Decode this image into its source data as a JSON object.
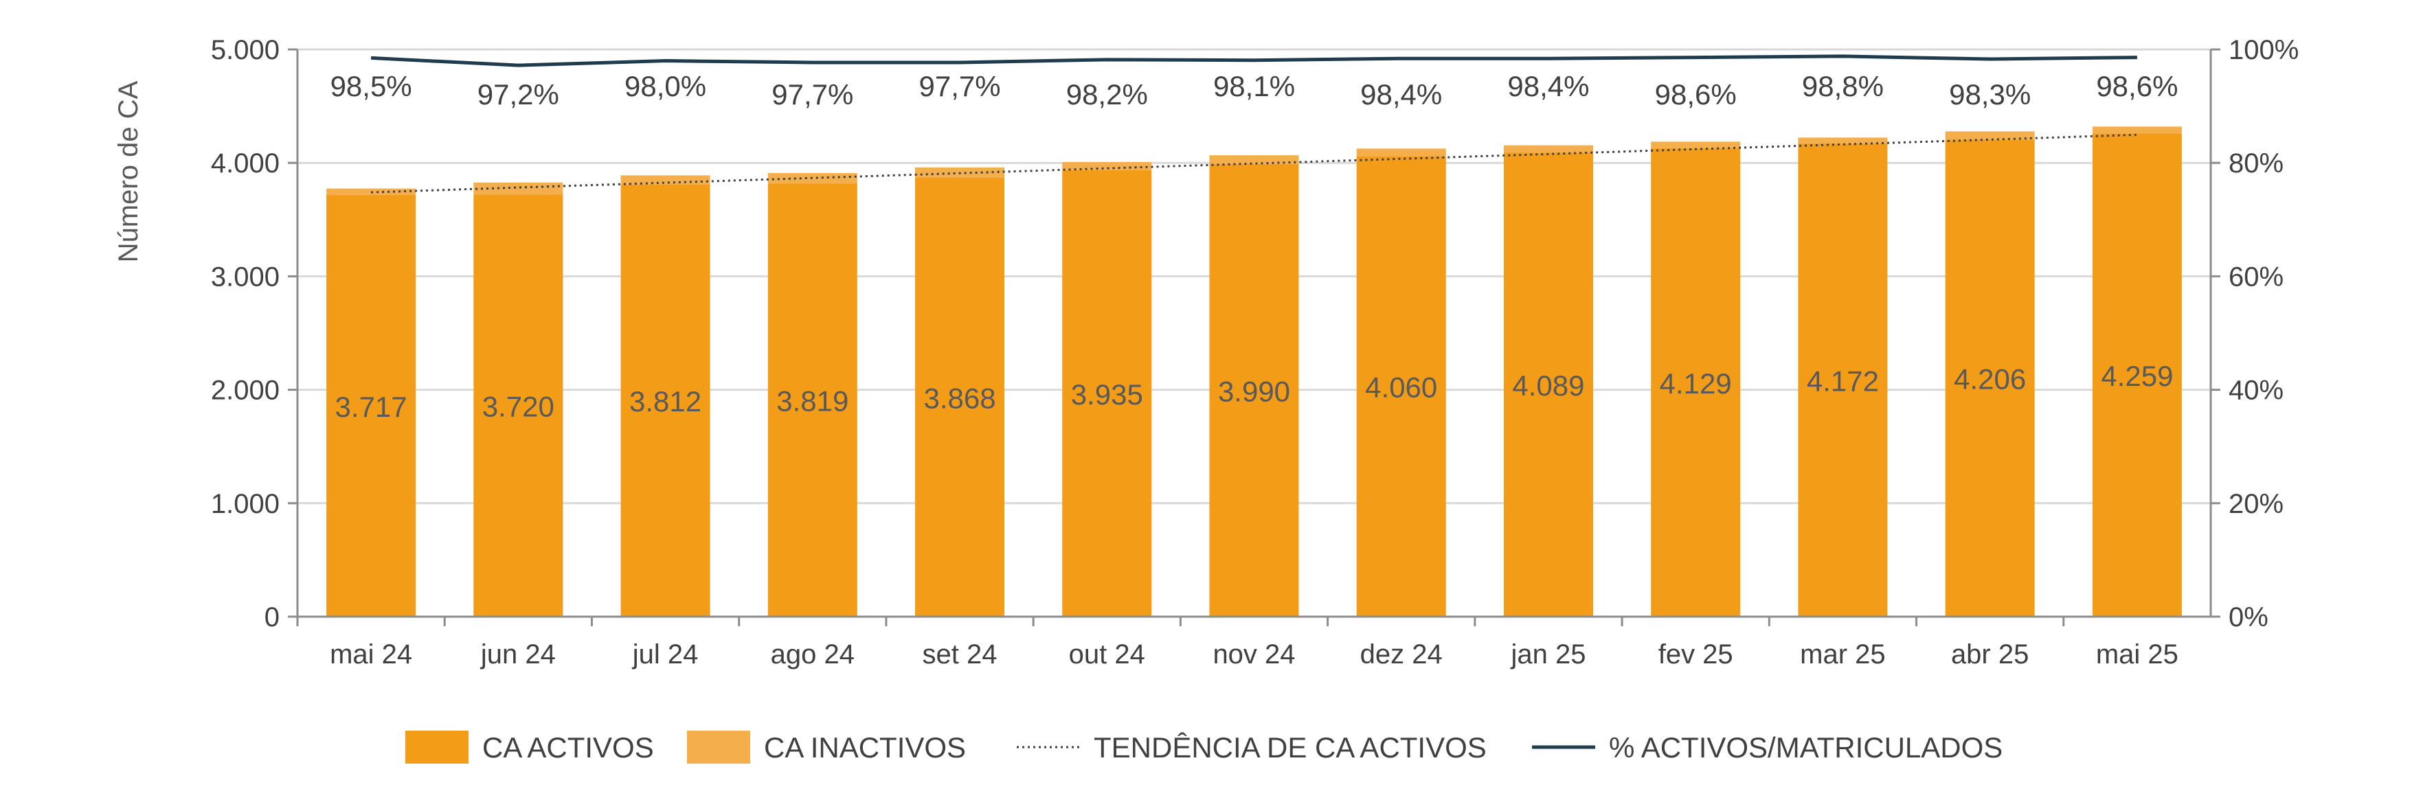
{
  "chart_data": {
    "type": "bar",
    "categories": [
      "mai 24",
      "jun 24",
      "jul 24",
      "ago 24",
      "set 24",
      "out 24",
      "nov 24",
      "dez 24",
      "jan 25",
      "fev 25",
      "mar 25",
      "abr 25",
      "mai 25"
    ],
    "ylabel": "Número de CA",
    "ylim": [
      0,
      5000
    ],
    "y_ticks": [
      "0",
      "1.000",
      "2.000",
      "3.000",
      "4.000",
      "5.000"
    ],
    "y2lim": [
      0,
      100
    ],
    "y2_ticks": [
      "0%",
      "20%",
      "40%",
      "60%",
      "80%",
      "100%"
    ],
    "grid": true,
    "legend_position": "bottom",
    "series": [
      {
        "name": "CA ACTIVOS",
        "kind": "bar",
        "color": "#F39C18",
        "values": [
          3717,
          3720,
          3812,
          3819,
          3868,
          3935,
          3990,
          4060,
          4089,
          4129,
          4172,
          4206,
          4259
        ],
        "labels": [
          "3.717",
          "3.720",
          "3.812",
          "3.819",
          "3.868",
          "3.935",
          "3.990",
          "4.060",
          "4.089",
          "4.129",
          "4.172",
          "4.206",
          "4.259"
        ]
      },
      {
        "name": "CA INACTIVOS",
        "kind": "bar-stacked",
        "color": "#F5AE4C",
        "values": [
          57,
          107,
          78,
          91,
          92,
          72,
          77,
          66,
          66,
          58,
          51,
          72,
          61
        ]
      },
      {
        "name": "TENDÊNCIA DE CA ACTIVOS",
        "kind": "trend-dotted",
        "color": "#404040",
        "values": [
          3740,
          3783,
          3825,
          3867,
          3909,
          3952,
          3994,
          4036,
          4078,
          4121,
          4163,
          4205,
          4248
        ]
      },
      {
        "name": "% ACTIVOS/MATRICULADOS",
        "kind": "line-secondary",
        "color": "#1F3B4D",
        "values": [
          98.5,
          97.2,
          98.0,
          97.7,
          97.7,
          98.2,
          98.1,
          98.4,
          98.4,
          98.6,
          98.8,
          98.3,
          98.6
        ],
        "labels": [
          "98,5%",
          "97,2%",
          "98,0%",
          "97,7%",
          "97,7%",
          "98,2%",
          "98,1%",
          "98,4%",
          "98,4%",
          "98,6%",
          "98,8%",
          "98,3%",
          "98,6%"
        ]
      }
    ]
  }
}
